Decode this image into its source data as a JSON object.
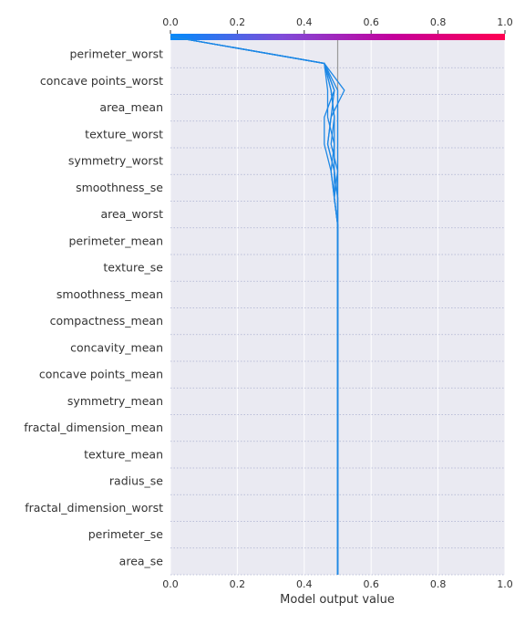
{
  "chart_data": {
    "type": "line",
    "subtype": "shap-decision-plot",
    "xlabel": "Model output value",
    "ylabel": "",
    "title": "",
    "xlim": [
      0.0,
      1.0
    ],
    "x_ticks": [
      "0.0",
      "0.2",
      "0.4",
      "0.6",
      "0.8",
      "1.0"
    ],
    "base_value": 0.5,
    "colorbar": {
      "range": [
        0.0,
        1.0
      ],
      "colors": [
        "#008bfb",
        "#7f4cd9",
        "#c4009c",
        "#ff0051"
      ]
    },
    "features": [
      "perimeter_worst",
      "concave points_worst",
      "area_mean",
      "texture_worst",
      "symmetry_worst",
      "smoothness_se",
      "area_worst",
      "perimeter_mean",
      "texture_se",
      "smoothness_mean",
      "compactness_mean",
      "concavity_mean",
      "concave points_mean",
      "symmetry_mean",
      "fractal_dimension_mean",
      "texture_mean",
      "radius_se",
      "fractal_dimension_worst",
      "perimeter_se",
      "area_se"
    ],
    "series": [
      {
        "values": [
          0.5,
          0.5,
          0.5,
          0.5,
          0.5,
          0.5,
          0.5,
          0.5,
          0.5,
          0.5,
          0.5,
          0.5,
          0.5,
          0.5,
          0.5,
          0.5,
          0.5,
          0.5,
          0.5,
          0.5,
          0.5,
          0.5,
          0.5,
          0.5,
          0.5,
          0.5,
          0.5,
          0.5,
          0.5,
          0.5,
          0.5,
          0.5,
          0.5,
          0.5,
          0.5,
          0.5,
          0.5,
          0.5,
          0.5,
          0.5,
          0.5,
          0.5,
          0.5,
          0.5,
          0.5,
          0.5,
          0.5,
          0.5,
          0.5,
          0.5,
          0.5,
          0.5,
          0.5,
          0.5,
          0.5,
          0.5,
          0.5,
          0.5,
          0.5,
          0.5,
          0.5,
          0.5,
          0.5,
          0.5,
          0.5,
          0.5,
          0.5,
          0.5,
          0.5,
          0.5,
          0.5,
          0.5,
          0.5,
          0.5,
          0.5,
          0.5,
          0.5,
          0.5,
          0.5,
          0.5,
          0.5
        ]
      }
    ],
    "lines": [
      [
        0.5,
        0.5,
        0.5,
        0.5,
        0.5,
        0.5,
        0.5,
        0.5,
        0.5,
        0.5,
        0.5,
        0.5,
        0.5,
        0.5,
        0.5,
        0.5,
        0.5,
        0.5,
        0.5,
        0.46,
        0.0
      ],
      [
        0.5,
        0.5,
        0.5,
        0.5,
        0.5,
        0.5,
        0.5,
        0.5,
        0.5,
        0.5,
        0.5,
        0.5,
        0.5,
        0.5,
        0.49,
        0.49,
        0.47,
        0.48,
        0.52,
        0.46,
        0.0
      ],
      [
        0.5,
        0.5,
        0.5,
        0.5,
        0.5,
        0.5,
        0.5,
        0.5,
        0.5,
        0.5,
        0.5,
        0.5,
        0.5,
        0.5,
        0.49,
        0.48,
        0.46,
        0.46,
        0.49,
        0.46,
        0.0
      ],
      [
        0.5,
        0.5,
        0.5,
        0.5,
        0.5,
        0.5,
        0.5,
        0.5,
        0.5,
        0.5,
        0.5,
        0.5,
        0.5,
        0.5,
        0.5,
        0.49,
        0.49,
        0.47,
        0.47,
        0.46,
        0.0
      ],
      [
        0.5,
        0.5,
        0.5,
        0.5,
        0.5,
        0.5,
        0.5,
        0.5,
        0.5,
        0.5,
        0.5,
        0.5,
        0.5,
        0.5,
        0.49,
        0.5,
        0.48,
        0.49,
        0.48,
        0.46,
        0.0
      ],
      [
        0.5,
        0.5,
        0.5,
        0.5,
        0.5,
        0.5,
        0.5,
        0.5,
        0.5,
        0.5,
        0.5,
        0.5,
        0.5,
        0.5,
        0.5,
        0.49,
        0.47,
        0.48,
        0.49,
        0.46,
        0.0
      ],
      [
        0.5,
        0.5,
        0.5,
        0.5,
        0.5,
        0.5,
        0.5,
        0.5,
        0.5,
        0.5,
        0.5,
        0.5,
        0.5,
        0.5,
        0.49,
        0.48,
        0.49,
        0.49,
        0.48,
        0.46,
        0.0
      ]
    ]
  }
}
